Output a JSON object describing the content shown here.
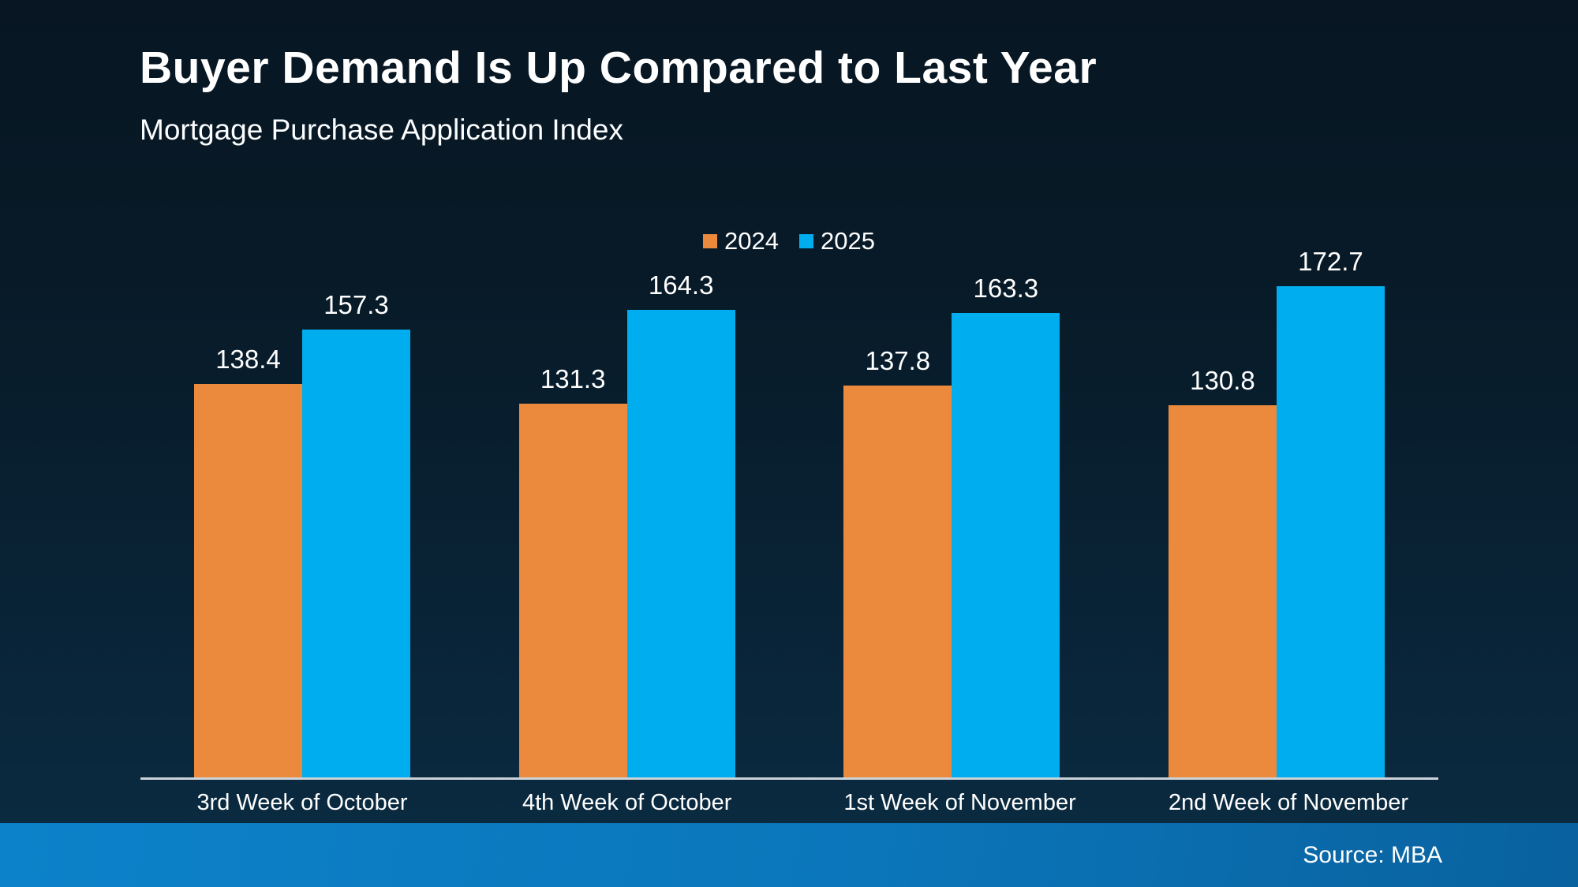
{
  "header": {
    "title": "Buyer Demand Is Up Compared to Last Year",
    "subtitle": "Mortgage Purchase Application Index"
  },
  "footer": {
    "source": "Source: MBA"
  },
  "colors": {
    "series_2024": "#EB8A3D",
    "series_2025": "#00ADEE",
    "background_top": "#071622",
    "background_bottom": "#0B2C43",
    "footer_gradient_left": "#0C82CA",
    "footer_gradient_right": "#09619E",
    "axis_line": "#CCD3D9",
    "text": "#FFFFFF"
  },
  "chart_data": {
    "type": "bar",
    "title": "Buyer Demand Is Up Compared to Last Year",
    "subtitle": "Mortgage Purchase Application Index",
    "categories": [
      "3rd Week of October",
      "4th Week of October",
      "1st Week of November",
      "2nd Week of November"
    ],
    "series": [
      {
        "name": "2024",
        "color": "#EB8A3D",
        "values": [
          138.4,
          131.3,
          137.8,
          130.8
        ]
      },
      {
        "name": "2025",
        "color": "#00ADEE",
        "values": [
          157.3,
          164.3,
          163.3,
          172.7
        ]
      }
    ],
    "ylim": [
      0,
      185
    ],
    "xlabel": "",
    "ylabel": "",
    "grid": false,
    "legend_position": "top-center",
    "value_labels": true,
    "source": "Source: MBA"
  }
}
